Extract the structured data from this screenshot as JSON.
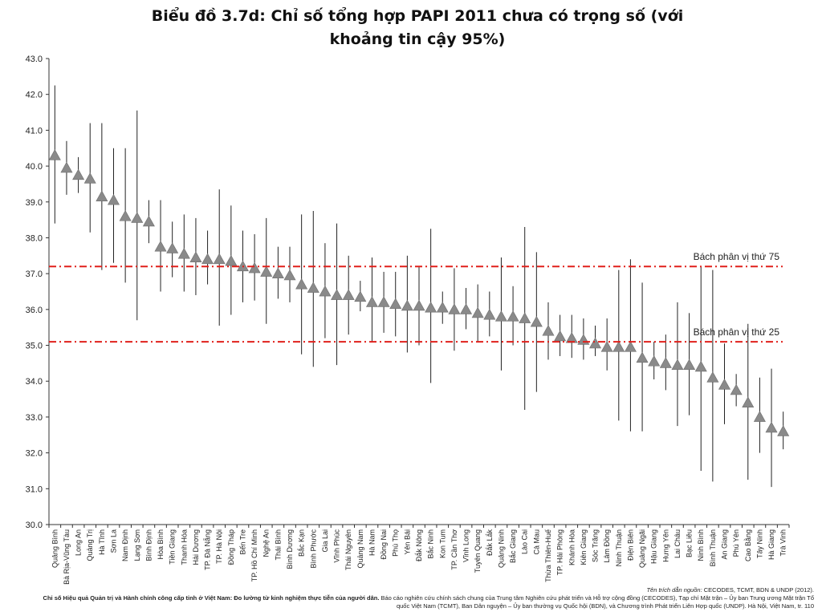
{
  "title": {
    "line1": "Biểu đồ 3.7d: Chỉ số tổng hợp PAPI 2011 chưa có trọng số (với",
    "line2": "khoảng tin cậy 95%)"
  },
  "colors": {
    "marker": "#8a8a8a",
    "whisker": "#222222",
    "reference": "#e0201b",
    "axis": "#333333"
  },
  "chart_data": {
    "type": "scatter",
    "title": "Biểu đồ 3.7d: Chỉ số tổng hợp PAPI 2011 chưa có trọng số (với khoảng tin cậy 95%)",
    "xlabel": "",
    "ylabel": "",
    "ylim": [
      30.0,
      43.0
    ],
    "yticks": [
      "30.0",
      "31.0",
      "32.0",
      "33.0",
      "34.0",
      "35.0",
      "36.0",
      "37.0",
      "38.0",
      "39.0",
      "40.0",
      "41.0",
      "42.0",
      "43.0"
    ],
    "grid": false,
    "marker": "triangle",
    "error_bars": "95% CI",
    "reference_lines": [
      {
        "label": "Bách phân vị thứ 75",
        "value": 37.2
      },
      {
        "label": "Bách phân vị thứ 25",
        "value": 35.1
      }
    ],
    "categories": [
      "Quảng Bình",
      "Bà Rịa-Vũng Tàu",
      "Long An",
      "Quảng Trị",
      "Hà Tĩnh",
      "Sơn La",
      "Nam Định",
      "Lạng Sơn",
      "Bình Định",
      "Hòa Bình",
      "Tiền Giang",
      "Thanh Hóa",
      "Hải Dương",
      "TP. Đà Nẵng",
      "TP. Hà Nội",
      "Đồng Tháp",
      "Bến Tre",
      "TP. Hồ Chí Minh",
      "Nghệ An",
      "Thái Bình",
      "Bình Dương",
      "Bắc Kạn",
      "Bình Phước",
      "Gia Lai",
      "Vĩnh Phúc",
      "Thái Nguyên",
      "Quảng Nam",
      "Hà Nam",
      "Đồng Nai",
      "Phú Thọ",
      "Yên Bái",
      "Đắk Nông",
      "Bắc Ninh",
      "Kon Tum",
      "TP. Cần Thơ",
      "Vĩnh Long",
      "Tuyên Quang",
      "Đắk Lắk",
      "Quảng Ninh",
      "Bắc Giang",
      "Lào Cai",
      "Cà Mau",
      "Thừa Thiên-Huế",
      "TP. Hải Phòng",
      "Khánh Hòa",
      "Kiên Giang",
      "Sóc Trăng",
      "Lâm Đồng",
      "Ninh Thuận",
      "Điện Biên",
      "Quảng Ngãi",
      "Hậu Giang",
      "Hưng Yên",
      "Lai Châu",
      "Bạc Liêu",
      "Ninh Bình",
      "Bình Thuận",
      "An Giang",
      "Phú Yên",
      "Cao Bằng",
      "Tây Ninh",
      "Hà Giang",
      "Trà Vinh"
    ],
    "values": [
      40.3,
      39.95,
      39.75,
      39.65,
      39.15,
      39.05,
      38.6,
      38.55,
      38.45,
      37.75,
      37.7,
      37.55,
      37.45,
      37.4,
      37.4,
      37.35,
      37.2,
      37.15,
      37.05,
      37.0,
      36.95,
      36.7,
      36.6,
      36.5,
      36.4,
      36.4,
      36.35,
      36.2,
      36.2,
      36.15,
      36.1,
      36.1,
      36.05,
      36.05,
      36.0,
      36.0,
      35.9,
      35.85,
      35.8,
      35.8,
      35.75,
      35.65,
      35.4,
      35.25,
      35.2,
      35.15,
      35.05,
      34.95,
      34.95,
      34.95,
      34.65,
      34.55,
      34.5,
      34.45,
      34.45,
      34.4,
      34.1,
      33.9,
      33.75,
      33.4,
      33.0,
      32.7,
      32.6
    ],
    "ci_low": [
      38.4,
      39.2,
      39.25,
      38.15,
      37.1,
      37.3,
      36.75,
      35.7,
      37.85,
      36.5,
      36.9,
      36.5,
      36.4,
      36.7,
      35.55,
      35.85,
      36.2,
      36.25,
      35.6,
      36.3,
      36.2,
      34.75,
      34.4,
      35.2,
      34.45,
      35.3,
      35.95,
      35.1,
      35.35,
      35.25,
      34.8,
      35.0,
      33.95,
      35.6,
      34.85,
      35.45,
      35.1,
      35.25,
      34.3,
      35.0,
      33.2,
      33.7,
      34.6,
      34.7,
      34.65,
      34.6,
      34.7,
      34.3,
      32.9,
      32.6,
      32.6,
      34.05,
      33.75,
      32.75,
      33.05,
      31.5,
      31.2,
      32.8,
      33.3,
      31.25,
      32.0,
      31.05,
      32.1
    ],
    "ci_high": [
      42.25,
      40.7,
      40.25,
      41.2,
      41.2,
      40.5,
      40.5,
      41.55,
      39.05,
      39.05,
      38.45,
      38.65,
      38.55,
      38.2,
      39.35,
      38.9,
      38.2,
      38.1,
      38.55,
      37.75,
      37.75,
      38.65,
      38.75,
      37.85,
      38.4,
      37.5,
      36.8,
      37.45,
      37.05,
      37.05,
      37.5,
      37.2,
      38.25,
      36.5,
      37.15,
      36.6,
      36.7,
      36.5,
      37.45,
      36.65,
      38.3,
      37.6,
      36.2,
      35.85,
      35.85,
      35.75,
      35.55,
      35.75,
      37.1,
      37.4,
      36.75,
      35.1,
      35.3,
      36.2,
      35.9,
      37.2,
      37.1,
      35.05,
      34.2,
      35.6,
      34.1,
      34.35,
      33.15
    ]
  },
  "footer": {
    "credit_label": "Tên trích dẫn nguồn:",
    "credit_text": " CECODES, TCMT, BDN & UNDP (2012).",
    "source_bold": "Chỉ số Hiệu quả Quản trị và Hành chính công cấp tỉnh ở Việt Nam: Đo lường từ kinh nghiệm thực tiễn của người dân.",
    "source_text": " Báo cáo nghiên cứu chính sách chung của Trung tâm Nghiên cứu phát triển và Hỗ trợ cộng đồng (CECODES), Tạp chí Mặt trận – Ủy ban Trung ương Mặt trận Tổ quốc Việt Nam (TCMT), Ban Dân nguyện – Ủy ban thường vụ Quốc hội (BDN), và Chương trình Phát triển Liên Hợp quốc (UNDP). Hà Nội, Việt Nam, tr. 110"
  }
}
